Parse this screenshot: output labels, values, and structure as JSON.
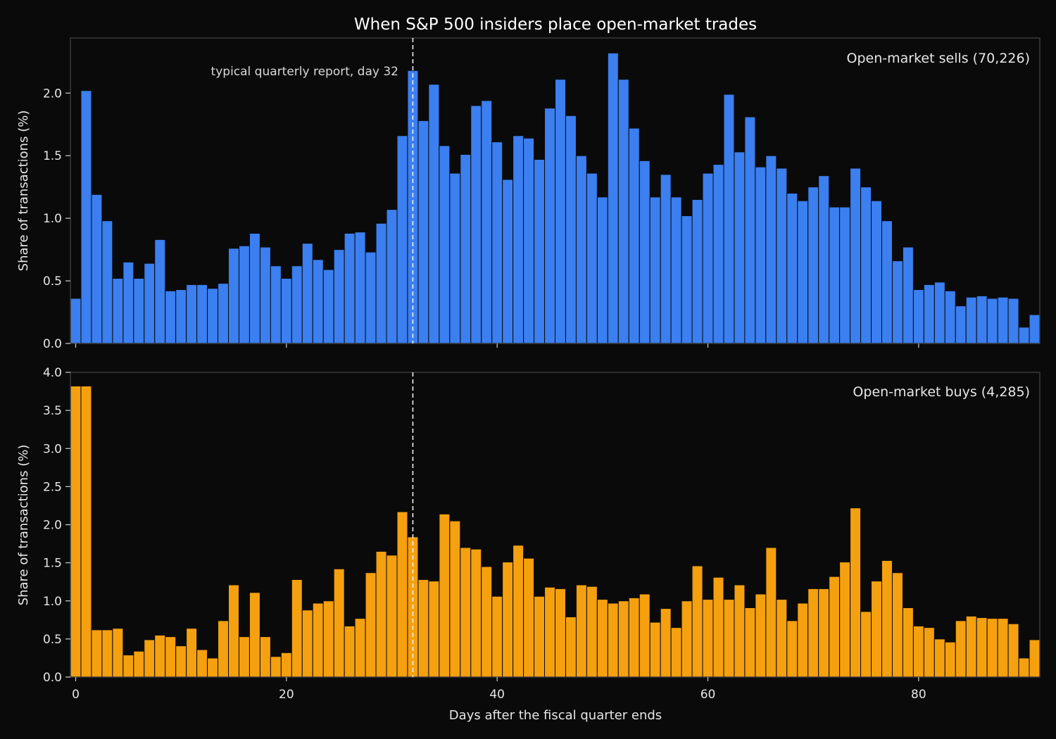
{
  "chart_data": {
    "title": "When S&P 500 insiders place open-market trades",
    "xlabel": "Days after the fiscal quarter ends",
    "x_ticks": [
      0,
      20,
      40,
      60,
      80
    ],
    "xlim": [
      -0.5,
      91.5
    ],
    "reference_day": 32,
    "annotation": "typical quarterly report, day 32",
    "panels": [
      {
        "type": "bar",
        "name": "Open-market sells (70,226)",
        "ylabel": "Share of transactions (%)",
        "ylim": [
          0,
          2.44
        ],
        "y_ticks": [
          "0.0",
          "0.5",
          "1.0",
          "1.5",
          "2.0"
        ],
        "color": "#3b7ff0",
        "values": [
          0.36,
          2.02,
          1.19,
          0.98,
          0.52,
          0.65,
          0.52,
          0.64,
          0.83,
          0.42,
          0.43,
          0.47,
          0.47,
          0.44,
          0.48,
          0.76,
          0.78,
          0.88,
          0.77,
          0.62,
          0.52,
          0.62,
          0.8,
          0.67,
          0.59,
          0.75,
          0.88,
          0.89,
          0.73,
          0.96,
          1.07,
          1.66,
          2.18,
          1.78,
          2.07,
          1.58,
          1.36,
          1.51,
          1.9,
          1.94,
          1.61,
          1.31,
          1.66,
          1.64,
          1.47,
          1.88,
          2.11,
          1.82,
          1.5,
          1.36,
          1.17,
          2.32,
          2.11,
          1.72,
          1.46,
          1.17,
          1.35,
          1.17,
          1.02,
          1.15,
          1.36,
          1.43,
          1.99,
          1.53,
          1.81,
          1.41,
          1.5,
          1.4,
          1.2,
          1.14,
          1.25,
          1.34,
          1.09,
          1.09,
          1.4,
          1.25,
          1.14,
          0.98,
          0.66,
          0.77,
          0.43,
          0.47,
          0.49,
          0.42,
          0.3,
          0.37,
          0.38,
          0.36,
          0.37,
          0.36,
          0.13,
          0.23
        ]
      },
      {
        "type": "bar",
        "name": "Open-market buys (4,285)",
        "ylabel": "Share of transactions (%)",
        "ylim": [
          0,
          4.0
        ],
        "y_ticks": [
          "0.0",
          "0.5",
          "1.0",
          "1.5",
          "2.0",
          "2.5",
          "3.0",
          "3.5",
          "4.0"
        ],
        "color": "#f5a00f",
        "values": [
          3.82,
          3.82,
          0.62,
          0.62,
          0.64,
          0.29,
          0.34,
          0.49,
          0.55,
          0.53,
          0.41,
          0.64,
          0.36,
          0.25,
          0.74,
          1.21,
          0.53,
          1.11,
          0.53,
          0.27,
          0.32,
          1.28,
          0.88,
          0.97,
          1.0,
          1.42,
          0.67,
          0.77,
          1.37,
          1.65,
          1.6,
          2.17,
          1.84,
          1.28,
          1.26,
          2.14,
          2.05,
          1.7,
          1.68,
          1.45,
          1.06,
          1.51,
          1.73,
          1.56,
          1.06,
          1.18,
          1.16,
          0.79,
          1.21,
          1.19,
          1.02,
          0.97,
          1.0,
          1.04,
          1.09,
          0.72,
          0.9,
          0.65,
          1.0,
          1.46,
          1.02,
          1.31,
          1.02,
          1.21,
          0.91,
          1.09,
          1.7,
          1.02,
          0.74,
          0.97,
          1.16,
          1.16,
          1.32,
          1.51,
          2.22,
          0.86,
          1.26,
          1.53,
          1.37,
          0.91,
          0.67,
          0.65,
          0.5,
          0.46,
          0.74,
          0.8,
          0.78,
          0.77,
          0.77,
          0.7,
          0.25,
          0.49
        ]
      }
    ]
  }
}
